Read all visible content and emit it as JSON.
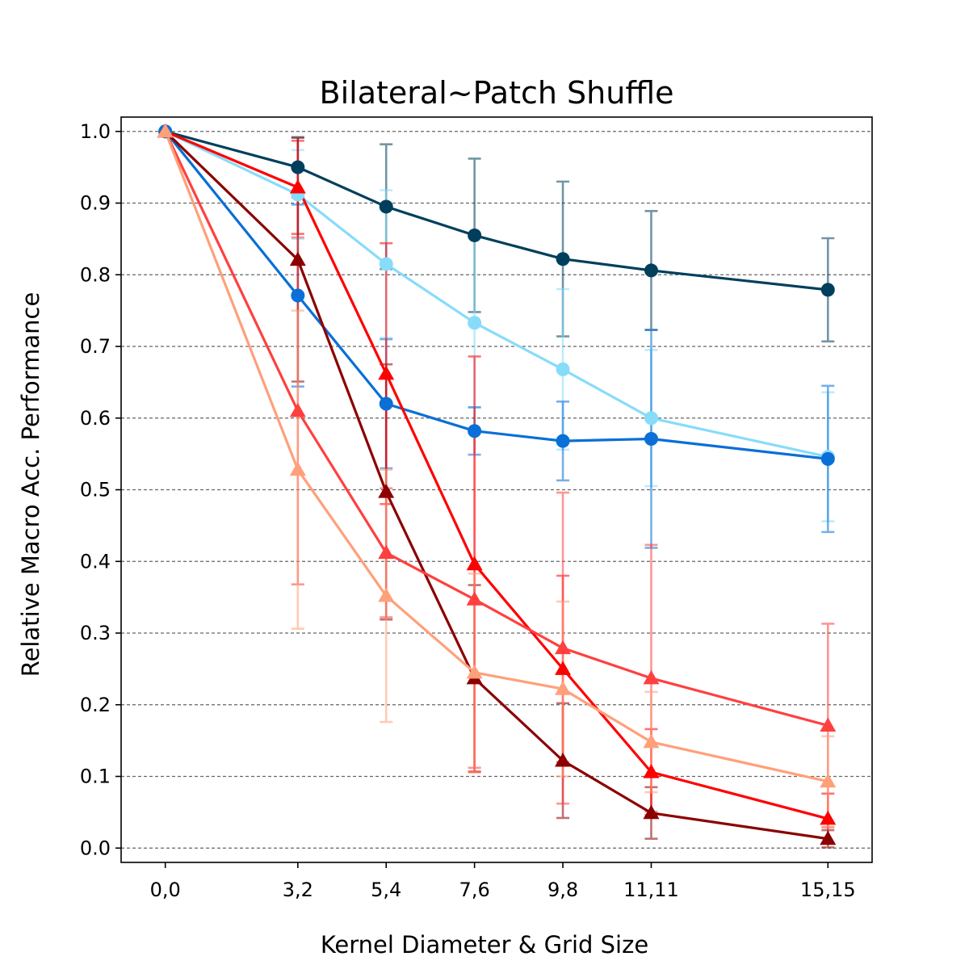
{
  "chart_data": {
    "type": "line",
    "title": "Bilateral~Patch Shuffle",
    "xlabel": "Kernel Diameter & Grid Size",
    "ylabel": "Relative Macro Acc. Performance",
    "x_categories": [
      "0,0",
      "3,2",
      "5,4",
      "7,6",
      "9,8",
      "11,11",
      "15,15"
    ],
    "x_values": [
      0,
      3,
      5,
      7,
      9,
      11,
      15
    ],
    "ylim": [
      -0.02,
      1.02
    ],
    "yticks": [
      "0.0",
      "0.1",
      "0.2",
      "0.3",
      "0.4",
      "0.5",
      "0.6",
      "0.7",
      "0.8",
      "0.9",
      "1.0"
    ],
    "grid": "horizontal dashed",
    "series": [
      {
        "color": "#003f5c",
        "marker": "circle",
        "values": [
          1.0,
          0.95,
          0.895,
          0.855,
          0.822,
          0.806,
          0.779
        ],
        "errors": [
          0,
          0.042,
          0.087,
          0.107,
          0.108,
          0.083,
          0.072
        ]
      },
      {
        "color": "#87dcfa",
        "marker": "circle",
        "values": [
          1.0,
          0.912,
          0.815,
          0.733,
          0.668,
          0.6,
          0.546
        ],
        "errors": [
          0,
          0.062,
          0.103,
          0.118,
          0.112,
          0.095,
          0.09
        ]
      },
      {
        "color": "#0a6fd6",
        "marker": "circle",
        "values": [
          1.0,
          0.771,
          0.62,
          0.582,
          0.568,
          0.571,
          0.543
        ],
        "errors": [
          0,
          0.127,
          0.09,
          0.033,
          0.055,
          0.152,
          0.102
        ]
      },
      {
        "color": "#8b0000",
        "marker": "triangle",
        "values": [
          1.0,
          0.821,
          0.497,
          0.237,
          0.122,
          0.049,
          0.013
        ],
        "errors": [
          0,
          0.17,
          0.178,
          0.13,
          0.08,
          0.036,
          0.012
        ]
      },
      {
        "color": "#ff0000",
        "marker": "triangle",
        "values": [
          1.0,
          0.922,
          0.662,
          0.396,
          0.25,
          0.106,
          0.041
        ],
        "errors": [
          0,
          0.065,
          0.182,
          0.29,
          0.13,
          0.06,
          0.035
        ]
      },
      {
        "color": "#ff4040",
        "marker": "triangle",
        "values": [
          1.0,
          0.61,
          0.412,
          0.347,
          0.279,
          0.237,
          0.171
        ],
        "errors": [
          0,
          0.242,
          0.09,
          0.235,
          0.217,
          0.186,
          0.142
        ]
      },
      {
        "color": "#ffa07a",
        "marker": "triangle",
        "values": [
          1.0,
          0.528,
          0.352,
          0.245,
          0.222,
          0.148,
          0.093
        ],
        "errors": [
          0,
          0.222,
          0.176,
          0.138,
          0.122,
          0.07,
          0.063
        ]
      }
    ]
  }
}
